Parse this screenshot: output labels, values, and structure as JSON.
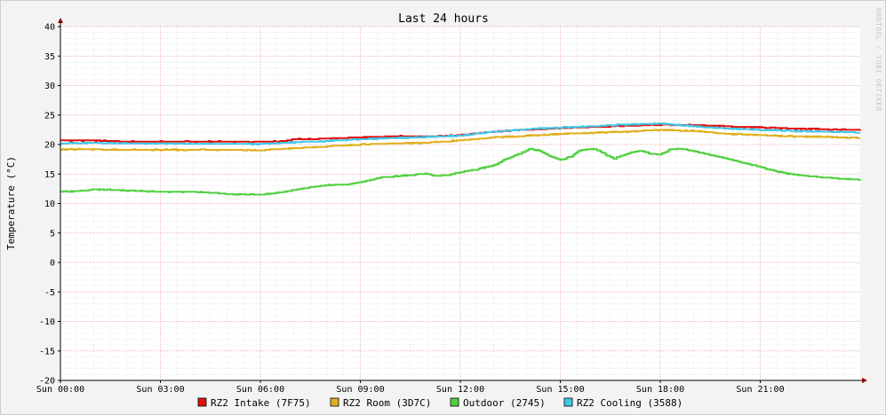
{
  "chart_data": {
    "type": "line",
    "title": "Last 24 hours",
    "ylabel": "Temperature (°C)",
    "xlabel": "",
    "watermark": "RRDTOOL / TOBI OETIKER",
    "ylim": [
      -20,
      40
    ],
    "yticks": [
      40,
      35,
      30,
      25,
      20,
      15,
      10,
      5,
      0,
      -5,
      -10,
      -15,
      -20
    ],
    "xlim": [
      0,
      24
    ],
    "xticks": [
      {
        "hour": 0,
        "label": "Sun 00:00"
      },
      {
        "hour": 3,
        "label": "Sun 03:00"
      },
      {
        "hour": 6,
        "label": "Sun 06:00"
      },
      {
        "hour": 9,
        "label": "Sun 09:00"
      },
      {
        "hour": 12,
        "label": "Sun 12:00"
      },
      {
        "hour": 15,
        "label": "Sun 15:00"
      },
      {
        "hour": 18,
        "label": "Sun 18:00"
      },
      {
        "hour": 21,
        "label": "Sun 21:00"
      }
    ],
    "grid": true,
    "legend_position": "bottom",
    "series": [
      {
        "name": "RZ2 Intake (7F75)",
        "color": "#e01010",
        "points": [
          [
            0,
            20.7
          ],
          [
            1,
            20.7
          ],
          [
            1.5,
            20.6
          ],
          [
            2,
            20.5
          ],
          [
            3,
            20.5
          ],
          [
            4,
            20.5
          ],
          [
            5,
            20.5
          ],
          [
            6,
            20.5
          ],
          [
            6.7,
            20.6
          ],
          [
            7,
            20.9
          ],
          [
            8,
            21.0
          ],
          [
            9,
            21.2
          ],
          [
            10,
            21.4
          ],
          [
            11,
            21.4
          ],
          [
            12,
            21.6
          ],
          [
            13,
            22.2
          ],
          [
            14,
            22.5
          ],
          [
            15,
            22.8
          ],
          [
            16,
            23.0
          ],
          [
            17,
            23.2
          ],
          [
            18,
            23.4
          ],
          [
            19,
            23.3
          ],
          [
            20,
            23.1
          ],
          [
            21,
            22.9
          ],
          [
            22,
            22.7
          ],
          [
            23,
            22.6
          ],
          [
            24,
            22.5
          ]
        ]
      },
      {
        "name": "RZ2 Room (3D7C)",
        "color": "#e0b020",
        "points": [
          [
            0,
            19.2
          ],
          [
            1,
            19.2
          ],
          [
            2,
            19.1
          ],
          [
            3,
            19.1
          ],
          [
            4,
            19.1
          ],
          [
            5,
            19.1
          ],
          [
            6,
            19.0
          ],
          [
            7,
            19.4
          ],
          [
            8,
            19.7
          ],
          [
            9,
            20.0
          ],
          [
            10,
            20.2
          ],
          [
            11,
            20.3
          ],
          [
            12,
            20.7
          ],
          [
            13,
            21.2
          ],
          [
            14,
            21.5
          ],
          [
            15,
            21.8
          ],
          [
            16,
            22.0
          ],
          [
            17,
            22.2
          ],
          [
            18,
            22.5
          ],
          [
            19,
            22.3
          ],
          [
            20,
            21.8
          ],
          [
            21,
            21.6
          ],
          [
            22,
            21.4
          ],
          [
            23,
            21.3
          ],
          [
            24,
            21.1
          ]
        ]
      },
      {
        "name": "Outdoor (2745)",
        "color": "#50d040",
        "points": [
          [
            0,
            12.0
          ],
          [
            0.5,
            12.1
          ],
          [
            1,
            12.4
          ],
          [
            1.5,
            12.3
          ],
          [
            2,
            12.2
          ],
          [
            3,
            12.0
          ],
          [
            4,
            12.0
          ],
          [
            4.5,
            11.8
          ],
          [
            5,
            11.6
          ],
          [
            6,
            11.5
          ],
          [
            6.5,
            11.8
          ],
          [
            7,
            12.3
          ],
          [
            7.5,
            12.8
          ],
          [
            8,
            13.1
          ],
          [
            8.5,
            13.2
          ],
          [
            9,
            13.6
          ],
          [
            9.3,
            14.0
          ],
          [
            9.7,
            14.5
          ],
          [
            10,
            14.6
          ],
          [
            10.5,
            14.8
          ],
          [
            11,
            15.1
          ],
          [
            11.2,
            14.7
          ],
          [
            11.6,
            14.8
          ],
          [
            12,
            15.3
          ],
          [
            12.5,
            15.8
          ],
          [
            13,
            16.5
          ],
          [
            13.4,
            17.6
          ],
          [
            13.8,
            18.5
          ],
          [
            14.1,
            19.3
          ],
          [
            14.4,
            18.9
          ],
          [
            14.7,
            18.0
          ],
          [
            15,
            17.4
          ],
          [
            15.3,
            17.9
          ],
          [
            15.6,
            19.0
          ],
          [
            16,
            19.3
          ],
          [
            16.3,
            18.5
          ],
          [
            16.6,
            17.6
          ],
          [
            17,
            18.4
          ],
          [
            17.4,
            19.0
          ],
          [
            17.7,
            18.4
          ],
          [
            18,
            18.3
          ],
          [
            18.3,
            19.2
          ],
          [
            18.6,
            19.3
          ],
          [
            19,
            18.9
          ],
          [
            19.5,
            18.2
          ],
          [
            20,
            17.6
          ],
          [
            20.5,
            16.9
          ],
          [
            21,
            16.2
          ],
          [
            21.5,
            15.4
          ],
          [
            22,
            14.9
          ],
          [
            22.5,
            14.6
          ],
          [
            23,
            14.4
          ],
          [
            24,
            14.0
          ]
        ]
      },
      {
        "name": "RZ2 Cooling (3588)",
        "color": "#40c8e8",
        "points": [
          [
            0,
            20.2
          ],
          [
            1,
            20.3
          ],
          [
            2,
            20.2
          ],
          [
            3,
            20.2
          ],
          [
            4,
            20.1
          ],
          [
            5,
            20.1
          ],
          [
            6,
            20.1
          ],
          [
            7,
            20.4
          ],
          [
            8,
            20.6
          ],
          [
            9,
            20.9
          ],
          [
            10,
            21.1
          ],
          [
            11,
            21.3
          ],
          [
            12,
            21.5
          ],
          [
            13,
            22.2
          ],
          [
            14,
            22.6
          ],
          [
            15,
            22.9
          ],
          [
            16,
            23.1
          ],
          [
            17,
            23.4
          ],
          [
            18,
            23.6
          ],
          [
            19,
            23.1
          ],
          [
            20,
            22.7
          ],
          [
            21,
            22.5
          ],
          [
            22,
            22.3
          ],
          [
            23,
            22.2
          ],
          [
            24,
            22.0
          ]
        ]
      }
    ]
  }
}
